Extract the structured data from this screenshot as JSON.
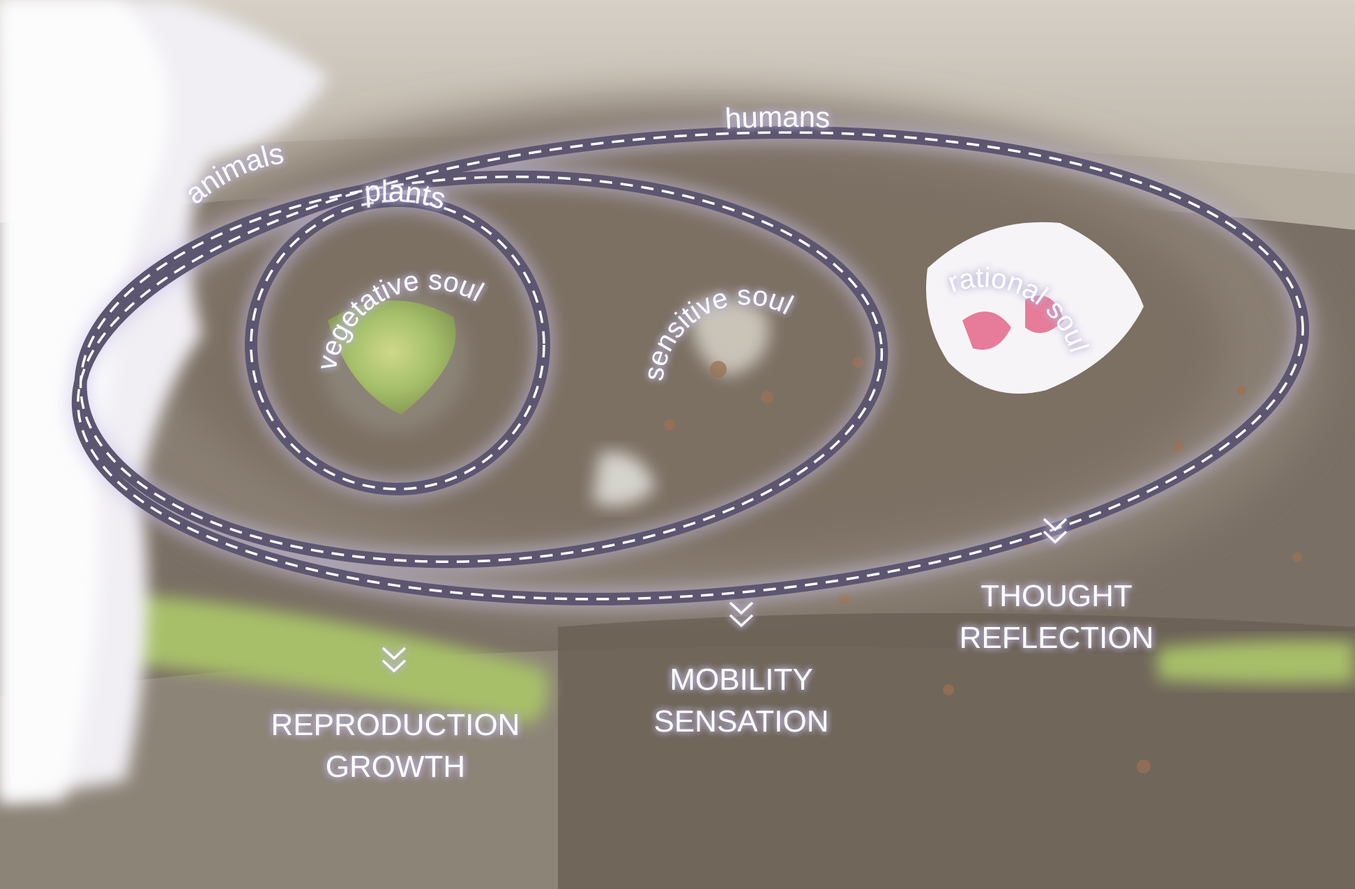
{
  "groups": {
    "humans": "humans",
    "animals": "animals",
    "plants": "plants"
  },
  "souls": {
    "vegetative": "vegetative soul",
    "sensitive": "sensitive soul",
    "rational": "rational soul"
  },
  "faculties": {
    "vegetative": [
      "REPRODUCTION",
      "GROWTH"
    ],
    "sensitive": [
      "MOBILITY",
      "SENSATION"
    ],
    "rational": [
      "THOUGHT",
      "REFLECTION"
    ]
  },
  "colors": {
    "ring_outline": "#5d5670",
    "ring_glow": "#c9c2e6",
    "dash": "#ffffff",
    "label_glow": "#b9b2da",
    "ground_light": "#c8c2b8",
    "ground_dark": "#6f6459",
    "grass": "#a9c46a"
  }
}
